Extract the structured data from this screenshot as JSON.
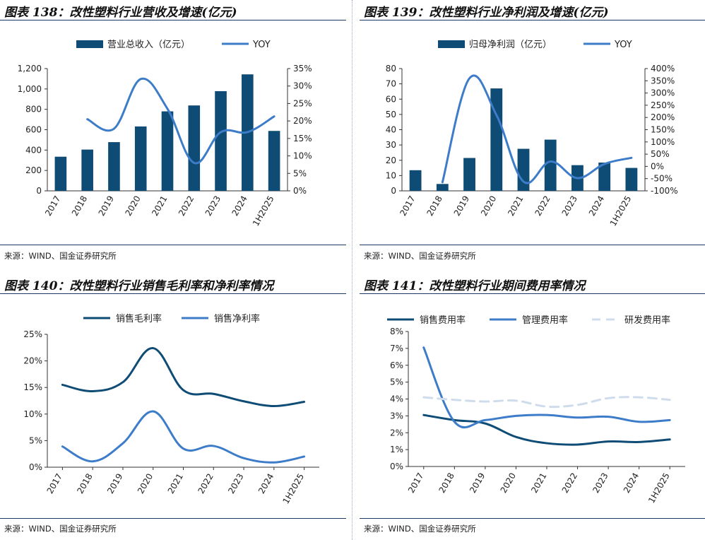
{
  "panels": [
    {
      "title": "图表 138：改性塑料行业营收及增速(亿元)",
      "source": "来源：WIND、国金证券研究所"
    },
    {
      "title": "图表 139：改性塑料行业净利润及增速(亿元)",
      "source": "来源：WIND、国金证券研究所"
    },
    {
      "title": "图表 140：改性塑料行业销售毛利率和净利率情况",
      "source": "来源：WIND、国金证券研究所"
    },
    {
      "title": "图表 141：改性塑料行业期间费用率情况",
      "source": "来源：WIND、国金证券研究所"
    }
  ],
  "chart_data": [
    {
      "type": "bar+line",
      "categories": [
        "2017",
        "2018",
        "2019",
        "2020",
        "2021",
        "2022",
        "2023",
        "2024",
        "1H2025"
      ],
      "series": [
        {
          "name": "营业总收入（亿元）",
          "kind": "bar",
          "axis": "left",
          "color": "#0f4c75",
          "values": [
            335,
            405,
            478,
            632,
            780,
            838,
            978,
            1143,
            588
          ]
        },
        {
          "name": "YOY",
          "kind": "line",
          "axis": "right",
          "color": "#3d7cc9",
          "values": [
            null,
            20.5,
            17.8,
            32,
            23.5,
            8,
            16.8,
            16.8,
            21.3
          ]
        }
      ],
      "left_ticks": [
        "0",
        "200",
        "400",
        "600",
        "800",
        "1,000",
        "1,200"
      ],
      "ylim": [
        0,
        1200
      ],
      "right_ticks": [
        "0%",
        "5%",
        "10%",
        "15%",
        "20%",
        "25%",
        "30%",
        "35%"
      ],
      "y2lim": [
        0,
        35
      ],
      "legend": "top-center"
    },
    {
      "type": "bar+line",
      "categories": [
        "2017",
        "2018",
        "2019",
        "2020",
        "2021",
        "2022",
        "2023",
        "2024",
        "1H2025"
      ],
      "series": [
        {
          "name": "归母净利润（亿元）",
          "kind": "bar",
          "axis": "left",
          "color": "#0f4c75",
          "values": [
            13.5,
            4.5,
            21.5,
            67,
            27.5,
            33.5,
            16.8,
            18.5,
            15
          ]
        },
        {
          "name": "YOY",
          "kind": "line",
          "axis": "right",
          "color": "#3d7cc9",
          "values": [
            null,
            -65,
            360,
            210,
            -62,
            20,
            -48,
            10,
            35
          ]
        }
      ],
      "left_ticks": [
        "0",
        "10",
        "20",
        "30",
        "40",
        "50",
        "60",
        "70",
        "80"
      ],
      "ylim": [
        0,
        80
      ],
      "right_ticks": [
        "-100%",
        "-50%",
        "0%",
        "50%",
        "100%",
        "150%",
        "200%",
        "250%",
        "300%",
        "350%",
        "400%"
      ],
      "y2lim": [
        -100,
        400
      ],
      "legend": "top-center"
    },
    {
      "type": "line",
      "categories": [
        "2017",
        "2018",
        "2019",
        "2020",
        "2021",
        "2022",
        "2023",
        "2024",
        "1H2025"
      ],
      "series": [
        {
          "name": "销售毛利率",
          "color": "#0f4c75",
          "dash": false,
          "values": [
            15.5,
            14.3,
            16.0,
            22.4,
            14.5,
            13.8,
            12.4,
            11.5,
            12.3
          ]
        },
        {
          "name": "销售净利率",
          "color": "#3d7cc9",
          "dash": false,
          "values": [
            3.9,
            1.1,
            4.5,
            10.5,
            3.5,
            4.0,
            1.7,
            0.9,
            2.0
          ]
        }
      ],
      "y_ticks": [
        "0%",
        "5%",
        "10%",
        "15%",
        "20%",
        "25%"
      ],
      "ylim": [
        0,
        25
      ],
      "legend": "top-center"
    },
    {
      "type": "line",
      "categories": [
        "2017",
        "2018",
        "2019",
        "2020",
        "2021",
        "2022",
        "2023",
        "2024",
        "1H2025"
      ],
      "series": [
        {
          "name": "销售费用率",
          "color": "#0f4c75",
          "dash": false,
          "values": [
            3.05,
            2.75,
            2.55,
            1.75,
            1.38,
            1.3,
            1.48,
            1.45,
            1.6
          ]
        },
        {
          "name": "管理费用率",
          "color": "#3d7cc9",
          "dash": false,
          "values": [
            7.05,
            2.65,
            2.75,
            3.0,
            3.05,
            2.9,
            2.95,
            2.65,
            2.75
          ]
        },
        {
          "name": "研发费用率",
          "color": "#cfdcec",
          "dash": true,
          "values": [
            4.1,
            3.95,
            3.85,
            3.9,
            3.55,
            3.65,
            4.05,
            4.1,
            3.95
          ]
        }
      ],
      "y_ticks": [
        "0%",
        "1%",
        "2%",
        "3%",
        "4%",
        "5%",
        "6%",
        "7%",
        "8%"
      ],
      "ylim": [
        0,
        8
      ],
      "legend": "top-center"
    }
  ]
}
